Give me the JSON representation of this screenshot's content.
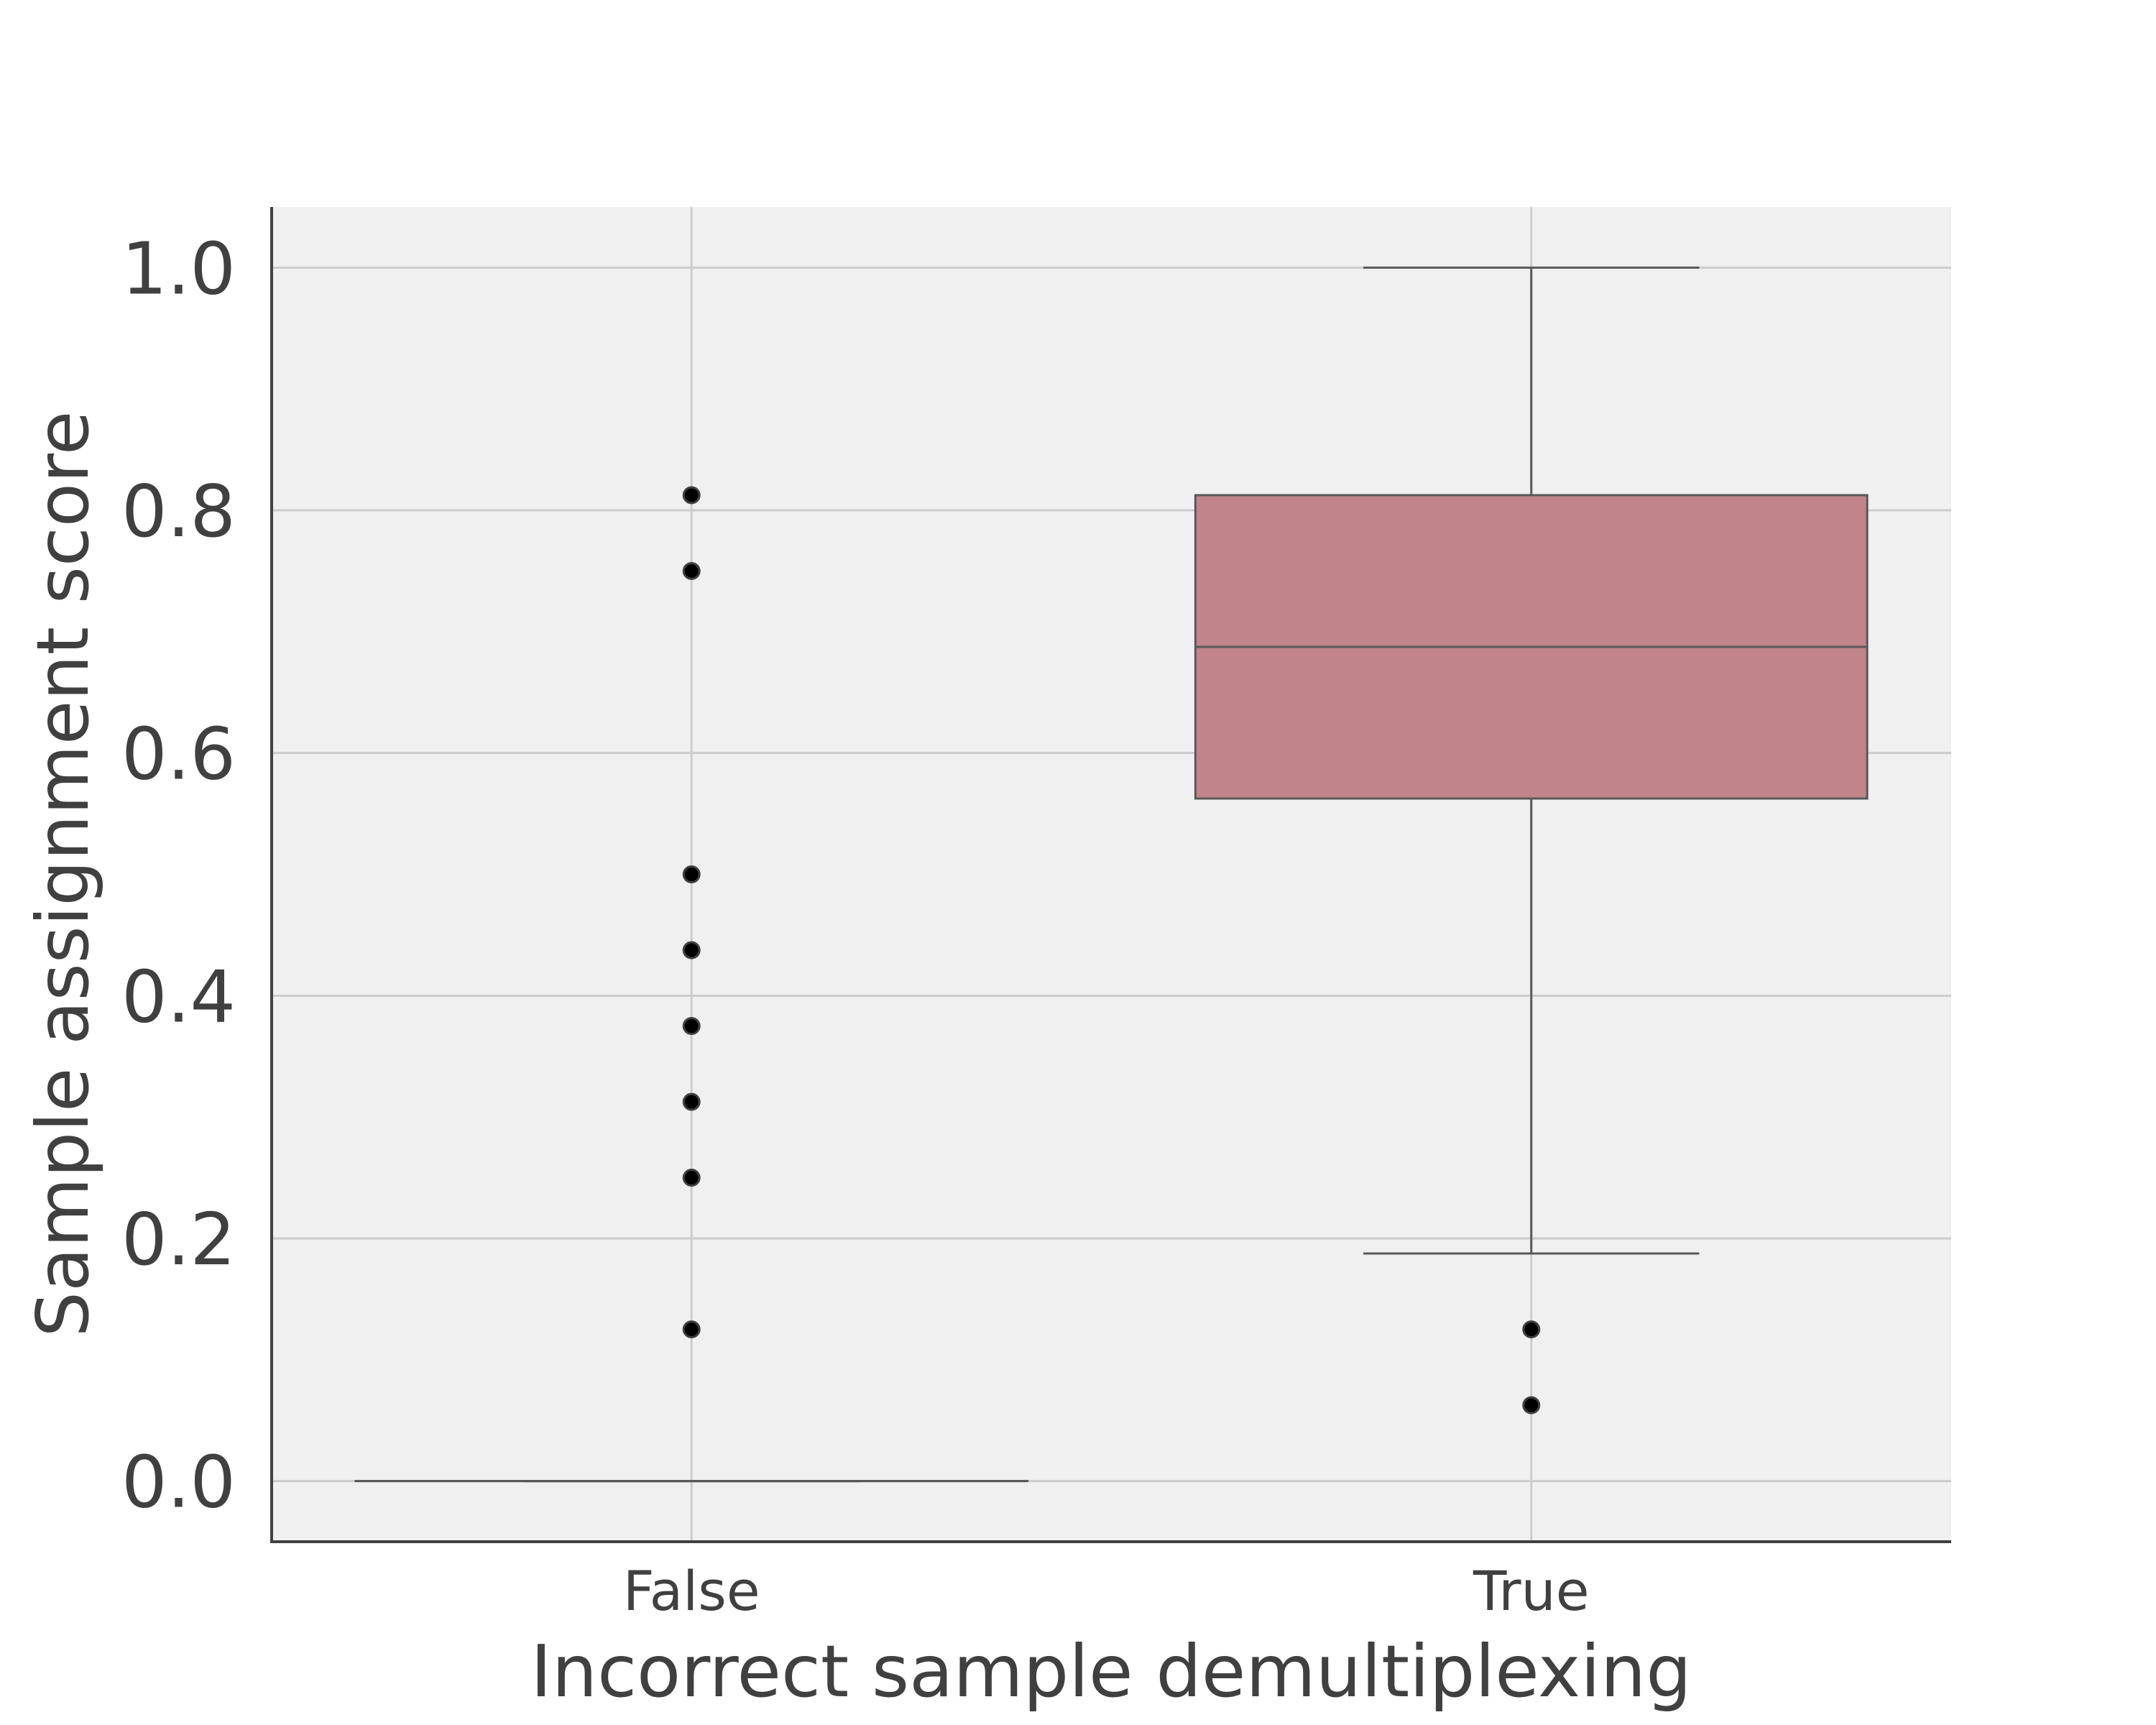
{
  "chart_data": {
    "type": "box",
    "title": "",
    "xlabel": "Incorrect sample demultiplexing",
    "ylabel": "Sample assignment score",
    "categories": [
      "False",
      "True"
    ],
    "ylim": [
      -0.05,
      1.05
    ],
    "yticks": [
      0.0,
      0.2,
      0.4,
      0.6,
      0.8,
      1.0
    ],
    "ytick_labels": [
      "0.0",
      "0.2",
      "0.4",
      "0.6",
      "0.8",
      "1.0"
    ],
    "grid": true,
    "box_color": "#c0848a",
    "boxes": [
      {
        "category": "False",
        "whisker_low": 0.0,
        "q1": 0.0,
        "median": 0.0,
        "q3": 0.0,
        "whisker_high": 0.0,
        "outliers": [
          0.8125,
          0.75,
          0.5,
          0.4375,
          0.375,
          0.3125,
          0.25,
          0.125
        ]
      },
      {
        "category": "True",
        "whisker_low": 0.1875,
        "q1": 0.5625,
        "median": 0.6875,
        "q3": 0.8125,
        "whisker_high": 1.0,
        "outliers": [
          0.125,
          0.0625
        ]
      }
    ]
  }
}
